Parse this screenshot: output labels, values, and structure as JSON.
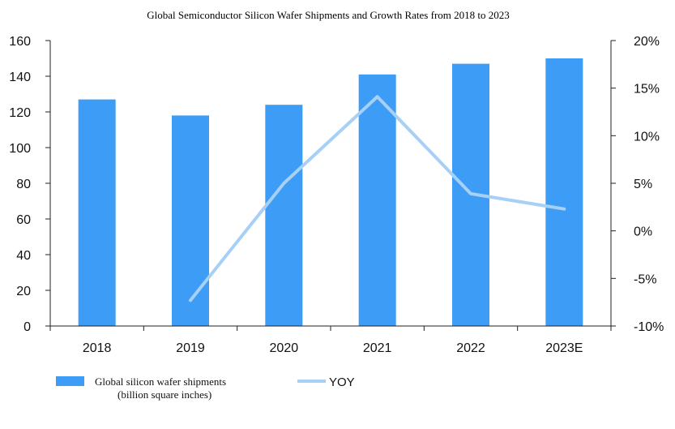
{
  "chart_data": {
    "type": "bar",
    "title": "Global Semiconductor Silicon Wafer Shipments and Growth Rates from 2018 to 2023",
    "categories": [
      "2018",
      "2019",
      "2020",
      "2021",
      "2022",
      "2023E"
    ],
    "series": [
      {
        "name": "Global silicon wafer shipments (billion square inches)",
        "name_lines": [
          "Global silicon wafer shipments",
          "(billion square inches)"
        ],
        "type": "bar",
        "axis": "left",
        "color": "#3d9cf5",
        "values": [
          127,
          118,
          124,
          141,
          147,
          150
        ]
      },
      {
        "name": "YOY",
        "type": "line",
        "axis": "right",
        "color": "#a6d0f5",
        "values": [
          null,
          -7.3,
          5.0,
          14.1,
          3.9,
          2.3
        ]
      }
    ],
    "left_axis": {
      "min": 0,
      "max": 160,
      "step": 20,
      "tick_labels": [
        "0",
        "20",
        "40",
        "60",
        "80",
        "100",
        "120",
        "140",
        "160"
      ]
    },
    "right_axis": {
      "min": -10,
      "max": 20,
      "step": 5,
      "tick_labels": [
        "-10%",
        "-5%",
        "0%",
        "5%",
        "10%",
        "15%",
        "20%"
      ]
    },
    "xlabel": "",
    "ylabel": "",
    "grid": false,
    "legend_position": "bottom-left"
  }
}
